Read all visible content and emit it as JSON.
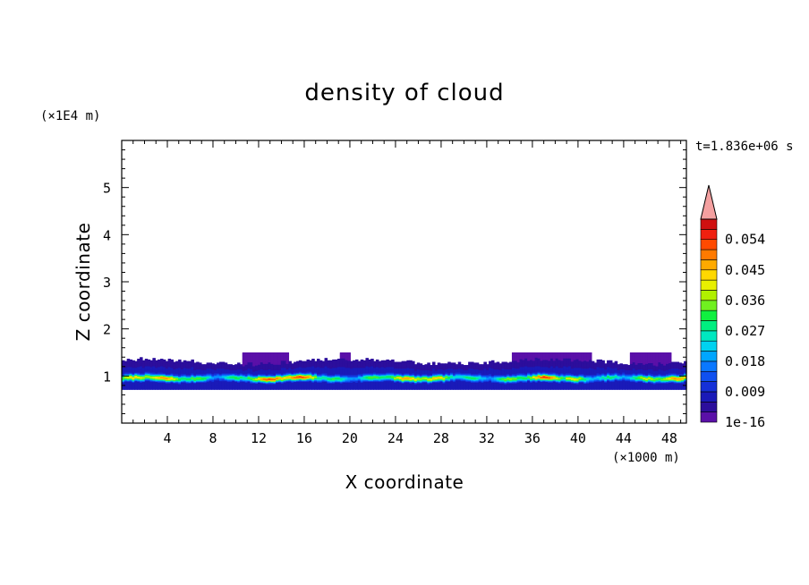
{
  "chart_data": {
    "type": "heatmap",
    "subtype": "filled-contour",
    "title": "density of cloud",
    "xlabel": "X coordinate",
    "ylabel": "Z coordinate",
    "x_unit_label": "(×1000 m)",
    "y_unit_label": "(×1E4 m)",
    "time_label": "t=1.836e+06 s",
    "xlim": [
      0,
      49.5
    ],
    "ylim": [
      0,
      6
    ],
    "x_ticks": [
      4,
      8,
      12,
      16,
      20,
      24,
      28,
      32,
      36,
      40,
      44,
      48
    ],
    "y_ticks": [
      1,
      2,
      3,
      4,
      5
    ],
    "grid": false,
    "colorbar": {
      "position": "right",
      "min": 1e-16,
      "max": 0.06,
      "extend": "max",
      "tick_values": [
        1e-16,
        0.009,
        0.018,
        0.027,
        0.036,
        0.045,
        0.054
      ],
      "tick_labels": [
        "1e-16",
        "0.009",
        "0.018",
        "0.027",
        "0.036",
        "0.045",
        "0.054"
      ],
      "colors": [
        "#5a10a8",
        "#2c0e9c",
        "#1a1ab8",
        "#1530d8",
        "#0f50f0",
        "#0a78ff",
        "#00a6ff",
        "#00d2f0",
        "#00e8c0",
        "#00ee80",
        "#10f040",
        "#70f020",
        "#b0f000",
        "#e8f000",
        "#ffd800",
        "#ffaa00",
        "#ff7a00",
        "#ff4a00",
        "#f02010",
        "#d01010"
      ],
      "over_color": "#f4a0a0"
    },
    "cloud_layer": {
      "z_range": [
        0.65,
        1.45
      ],
      "core_z": 0.95,
      "peak_value": 0.05,
      "peak_x": 37
    }
  }
}
